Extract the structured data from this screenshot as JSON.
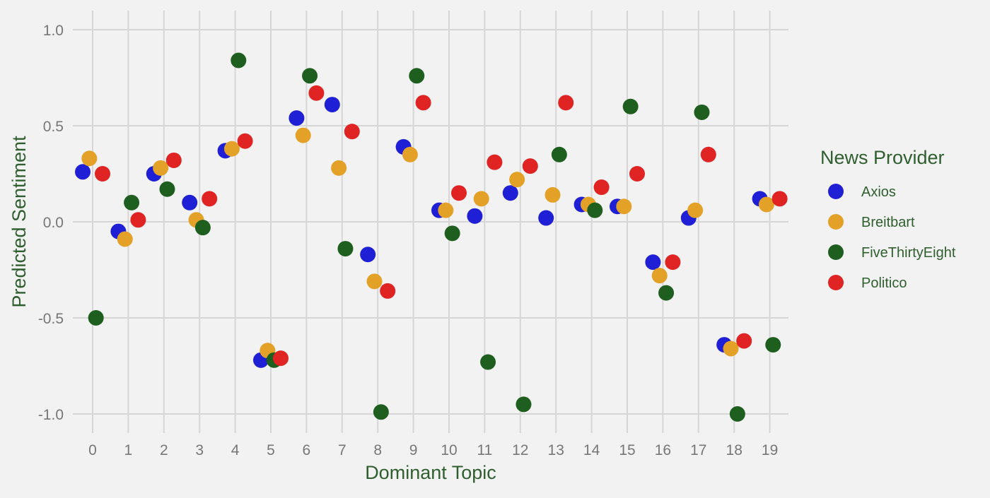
{
  "chart_data": {
    "type": "scatter",
    "title": "",
    "xlabel": "Dominant Topic",
    "ylabel": "Predicted Sentiment",
    "categories": [
      "0",
      "1",
      "2",
      "3",
      "4",
      "5",
      "6",
      "7",
      "8",
      "9",
      "10",
      "11",
      "12",
      "13",
      "14",
      "15",
      "16",
      "17",
      "18",
      "19"
    ],
    "ylim": [
      -1.1,
      1.1
    ],
    "yticks": [
      -1.0,
      -0.5,
      0.0,
      0.5,
      1.0
    ],
    "ytick_labels": [
      "-1.0",
      "-0.5",
      "0.0",
      "0.5",
      "1.0"
    ],
    "grid": true,
    "legend": {
      "title": "News Provider",
      "placement": "right"
    },
    "series": [
      {
        "name": "Axios",
        "color": "#1f1fd6",
        "values": [
          0.26,
          -0.05,
          0.25,
          0.1,
          0.37,
          -0.72,
          0.54,
          0.61,
          -0.17,
          0.39,
          0.06,
          0.03,
          0.15,
          0.02,
          0.09,
          0.08,
          -0.21,
          0.02,
          -0.64,
          0.12
        ]
      },
      {
        "name": "Breitbart",
        "color": "#e3a127",
        "values": [
          0.33,
          -0.09,
          0.28,
          0.01,
          0.38,
          -0.67,
          0.45,
          0.28,
          -0.31,
          0.35,
          0.06,
          0.12,
          0.22,
          0.14,
          0.09,
          0.08,
          -0.28,
          0.06,
          -0.66,
          0.09
        ]
      },
      {
        "name": "FiveThirtyEight",
        "color": "#1e5e1e",
        "values": [
          -0.5,
          0.1,
          0.17,
          -0.03,
          0.84,
          -0.72,
          0.76,
          -0.14,
          -0.99,
          0.76,
          -0.06,
          -0.73,
          -0.95,
          0.35,
          0.06,
          0.6,
          -0.37,
          0.57,
          -1.0,
          -0.64
        ]
      },
      {
        "name": "Politico",
        "color": "#e02424",
        "values": [
          0.25,
          0.01,
          0.32,
          0.12,
          0.42,
          -0.71,
          0.67,
          0.47,
          -0.36,
          0.62,
          0.15,
          0.31,
          0.29,
          0.62,
          0.18,
          0.25,
          -0.21,
          0.35,
          -0.62,
          0.12
        ]
      }
    ]
  },
  "colors": {
    "background": "#f2f2f2",
    "grid": "#d6d6d6",
    "axis_text": "#777777",
    "label_text": "#2f5e2f"
  }
}
